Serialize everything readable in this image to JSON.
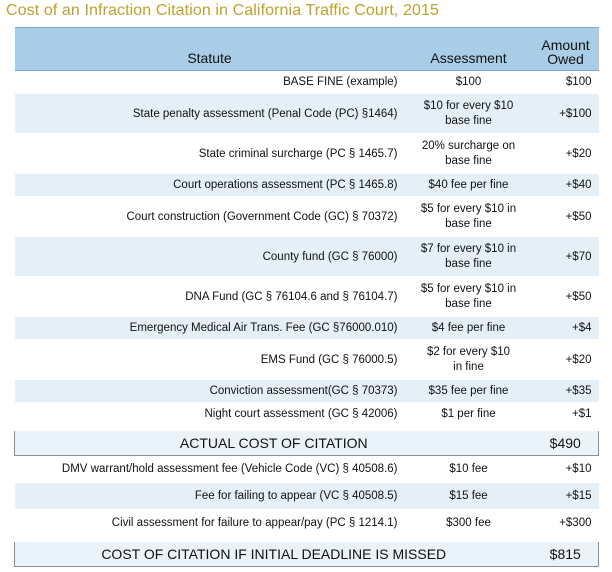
{
  "title": "Cost of an Infraction Citation in California Traffic Court, 2015",
  "headers": {
    "statute": "Statute",
    "assessment": "Assessment",
    "amount_line1": "Amount",
    "amount_line2": "Owed"
  },
  "rows": [
    {
      "statute": "BASE FINE (example)",
      "assessment_line1": "$100",
      "assessment_line2": "",
      "amount": "$100"
    },
    {
      "statute": "State penalty assessment (Penal Code (PC) §1464)",
      "assessment_line1": "$10 for every $10",
      "assessment_line2": "base fine",
      "amount": "+$100"
    },
    {
      "statute": "State criminal surcharge (PC § 1465.7)",
      "assessment_line1": "20% surcharge on",
      "assessment_line2": "base fine",
      "amount": "+$20"
    },
    {
      "statute": "Court operations assessment (PC § 1465.8)",
      "assessment_line1": "$40 fee per fine",
      "assessment_line2": "",
      "amount": "+$40"
    },
    {
      "statute": "Court construction (Government Code (GC) § 70372)",
      "assessment_line1": "$5 for every $10 in",
      "assessment_line2": "base fine",
      "amount": "+$50"
    },
    {
      "statute": "County fund (GC § 76000)",
      "assessment_line1": "$7 for every $10 in",
      "assessment_line2": "base fine",
      "amount": "+$70"
    },
    {
      "statute": "DNA Fund (GC § 76104.6 and § 76104.7)",
      "assessment_line1": "$5  for every $10 in",
      "assessment_line2": "base fine",
      "amount": "+$50"
    },
    {
      "statute": "Emergency Medical Air Trans. Fee (GC §76000.010)",
      "assessment_line1": "$4 fee per fine",
      "assessment_line2": "",
      "amount": "+$4"
    },
    {
      "statute": "EMS Fund (GC § 76000.5)",
      "assessment_line1": "$2 for every $10",
      "assessment_line2": "in fine",
      "amount": "+$20"
    },
    {
      "statute": "Conviction assessment(GC § 70373)",
      "assessment_line1": "$35 fee per fine",
      "assessment_line2": "",
      "amount": "+$35"
    },
    {
      "statute": "Night court assessment (GC § 42006)",
      "assessment_line1": "$1 per fine",
      "assessment_line2": "",
      "amount": "+$1"
    }
  ],
  "total1": {
    "label": "ACTUAL COST OF CITATION",
    "amount": "$490"
  },
  "rows2": [
    {
      "statute": "DMV warrant/hold assessment fee (Vehicle Code (VC) § 40508.6)",
      "assessment": "$10 fee",
      "amount": "+$10"
    },
    {
      "statute": "Fee for failing to appear (VC § 40508.5)",
      "assessment": "$15 fee",
      "amount": "+$15"
    },
    {
      "statute": "Civil assessment for failure to appear/pay (PC § 1214.1)",
      "assessment": "$300 fee",
      "amount": "+$300"
    }
  ],
  "total2": {
    "label": "COST OF CITATION IF INITIAL DEADLINE IS MISSED",
    "amount": "$815"
  }
}
